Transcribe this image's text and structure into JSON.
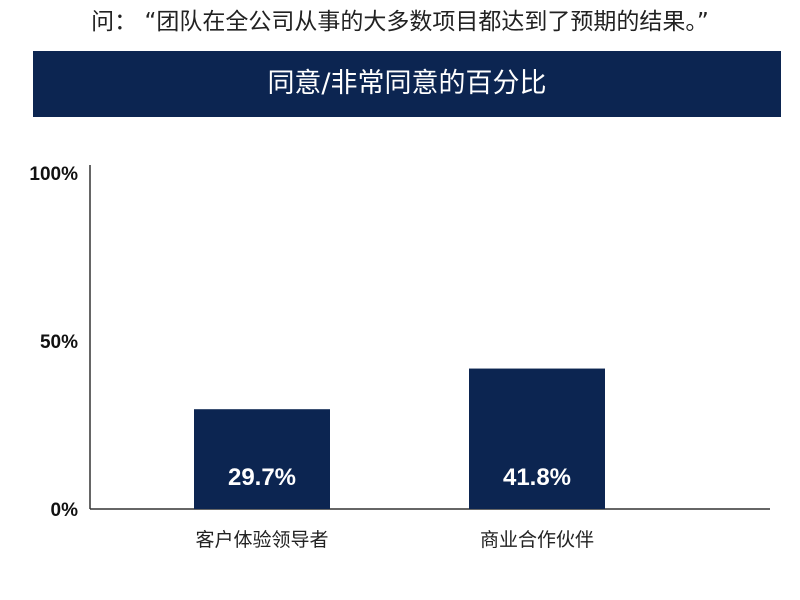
{
  "question": "问：  “团队在全公司从事的大多数项目都达到了预期的结果。”",
  "colors": {
    "banner": "#0c2551",
    "bar": "#0c2551",
    "axis": "#333333"
  },
  "chart_data": {
    "type": "bar",
    "title": "同意/非常同意的百分比",
    "categories": [
      "客户体验领导者",
      "商业合作伙伴"
    ],
    "values": [
      29.7,
      41.8
    ],
    "value_labels": [
      "29.7%",
      "41.8%"
    ],
    "ylim": [
      0,
      100
    ],
    "y_ticks": [
      0,
      50,
      100
    ],
    "y_tick_labels": [
      "0%",
      "50%",
      "100%"
    ],
    "xlabel": "",
    "ylabel": "",
    "grid": false,
    "legend": "none"
  }
}
